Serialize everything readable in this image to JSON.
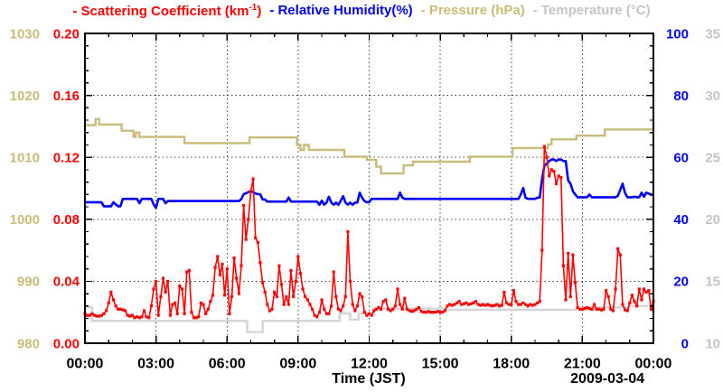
{
  "chart_data": {
    "type": "line",
    "background": "#ffffff",
    "frame_color": "#000000",
    "grid": {
      "style": "dotted",
      "vertical_hours": [
        3,
        6,
        9,
        12,
        15,
        18,
        21
      ],
      "horizontal_values": [
        0.04,
        0.08,
        0.12,
        0.16
      ]
    },
    "x_axis": {
      "label": "Time (JST)",
      "date_label": "2009-03-04",
      "range": [
        0,
        24
      ],
      "major_tick_hours": 3,
      "minor_tick_hours": 1,
      "tick_labels": [
        "00:00",
        "03:00",
        "06:00",
        "09:00",
        "12:00",
        "15:00",
        "18:00",
        "21:00",
        "00:00"
      ]
    },
    "y_axes": [
      {
        "id": "pressure",
        "label": "Pressure (hPa)",
        "side": "left-outer",
        "color": "#c8bc78",
        "range": [
          980,
          1030
        ],
        "tick_labels": [
          "980",
          "990",
          "1000",
          "1010",
          "1020",
          "1030"
        ]
      },
      {
        "id": "scattering",
        "label": "Scattering Coefficient (km-1)",
        "side": "left",
        "color": "#ff0000",
        "range": [
          0,
          0.2
        ],
        "tick_labels": [
          "0.00",
          "0.04",
          "0.08",
          "0.12",
          "0.16",
          "0.20"
        ],
        "minor_per_major": 4
      },
      {
        "id": "humidity",
        "label": "Relative Humidity(%)",
        "side": "right",
        "color": "#0000ff",
        "range": [
          0,
          100
        ],
        "tick_labels": [
          "0",
          "20",
          "40",
          "60",
          "80",
          "100"
        ]
      },
      {
        "id": "temperature",
        "label": "Temperature (°C)",
        "side": "right-outer",
        "color": "#c4c4c4",
        "range": [
          10,
          35
        ],
        "tick_labels": [
          "10",
          "15",
          "20",
          "25",
          "30",
          "35"
        ]
      }
    ],
    "series": [
      {
        "id": "scattering",
        "name": "Scattering Coefficient",
        "legend_label_base": "- Scattering Coefficient (km",
        "legend_label_sup": "-1",
        "legend_label_close": ")",
        "color": "#ff0000",
        "axis": "scattering",
        "style": "line+markers",
        "t_start": 0,
        "t_step": 0.1,
        "values": [
          0.019,
          0.018,
          0.018,
          0.019,
          0.018,
          0.0175,
          0.0175,
          0.018,
          0.019,
          0.021,
          0.026,
          0.033,
          0.028,
          0.024,
          0.022,
          0.022,
          0.0215,
          0.021,
          0.018,
          0.0175,
          0.018,
          0.0165,
          0.017,
          0.0165,
          0.017,
          0.021,
          0.017,
          0.0165,
          0.024,
          0.035,
          0.04,
          0.018,
          0.03,
          0.042,
          0.033,
          0.04,
          0.018,
          0.025,
          0.026,
          0.019,
          0.037,
          0.035,
          0.019,
          0.046,
          0.047,
          0.02,
          0.0165,
          0.0165,
          0.017,
          0.026,
          0.025,
          0.019,
          0.022,
          0.027,
          0.031,
          0.049,
          0.056,
          0.044,
          0.051,
          0.031,
          0.048,
          0.019,
          0.03,
          0.055,
          0.042,
          0.032,
          0.05,
          0.089,
          0.067,
          0.08,
          0.098,
          0.106,
          0.068,
          0.065,
          0.052,
          0.039,
          0.033,
          0.025,
          0.021,
          0.022,
          0.033,
          0.03,
          0.05,
          0.038,
          0.025,
          0.03,
          0.025,
          0.047,
          0.03,
          0.04,
          0.056,
          0.045,
          0.035,
          0.03,
          0.028,
          0.025,
          0.022,
          0.018,
          0.017,
          0.02,
          0.028,
          0.022,
          0.019,
          0.019,
          0.024,
          0.046,
          0.03,
          0.022,
          0.021,
          0.024,
          0.03,
          0.072,
          0.04,
          0.025,
          0.021,
          0.024,
          0.032,
          0.03,
          0.02,
          0.018,
          0.019,
          0.018,
          0.021,
          0.022,
          0.023,
          0.022,
          0.027,
          0.028,
          0.022,
          0.021,
          0.022,
          0.024,
          0.035,
          0.025,
          0.022,
          0.029,
          0.022,
          0.021,
          0.0205,
          0.021,
          0.022,
          0.023,
          0.0205,
          0.02,
          0.02,
          0.0205,
          0.02,
          0.02,
          0.02,
          0.0205,
          0.02,
          0.02,
          0.021,
          0.024,
          0.025,
          0.0245,
          0.025,
          0.026,
          0.027,
          0.025,
          0.0255,
          0.026,
          0.025,
          0.0255,
          0.026,
          0.027,
          0.025,
          0.0245,
          0.025,
          0.0245,
          0.025,
          0.0245,
          0.024,
          0.0245,
          0.025,
          0.024,
          0.0245,
          0.033,
          0.026,
          0.025,
          0.025,
          0.034,
          0.027,
          0.025,
          0.025,
          0.026,
          0.025,
          0.024,
          0.025,
          0.0245,
          0.025,
          0.026,
          0.027,
          0.06,
          0.127,
          0.12,
          0.108,
          0.112,
          0.111,
          0.103,
          0.108,
          0.107,
          0.05,
          0.028,
          0.058,
          0.03,
          0.057,
          0.039,
          0.023,
          0.022,
          0.022,
          0.0225,
          0.023,
          0.0225,
          0.022,
          0.025,
          0.022,
          0.022,
          0.0215,
          0.022,
          0.034,
          0.03,
          0.022,
          0.021,
          0.035,
          0.061,
          0.057,
          0.025,
          0.0215,
          0.021,
          0.026,
          0.031,
          0.027,
          0.024,
          0.035,
          0.028,
          0.035,
          0.033,
          0.034,
          0.022,
          0.027
        ]
      },
      {
        "id": "humidity",
        "name": "Relative Humidity",
        "legend_label": "- Relative Humidity(%)",
        "color": "#0000ff",
        "axis": "humidity",
        "style": "line",
        "t_start": 0,
        "t_step": 0.1,
        "values": [
          45.5,
          45.5,
          45.5,
          45.5,
          45.5,
          45.5,
          45.5,
          45.5,
          44.2,
          44.2,
          44.2,
          44.2,
          45.5,
          44.8,
          44.2,
          44.2,
          46.6,
          46.6,
          46.6,
          46.6,
          46.6,
          46.6,
          46.6,
          45.2,
          46.6,
          46.6,
          46.6,
          46.6,
          46.6,
          44.8,
          43.7,
          46.6,
          46.6,
          46.6,
          45.2,
          45.9,
          45.9,
          45.9,
          45.9,
          45.9,
          45.9,
          45.9,
          45.9,
          45.9,
          45.9,
          45.9,
          45.9,
          45.9,
          45.9,
          45.9,
          45.9,
          45.9,
          45.9,
          45.9,
          45.9,
          45.9,
          45.9,
          45.9,
          45.9,
          45.9,
          45.9,
          45.9,
          45.9,
          45.9,
          45.9,
          45.9,
          46.5,
          48.1,
          48.4,
          48.8,
          49.0,
          48.8,
          48.3,
          48.1,
          48.1,
          46.4,
          46.4,
          45.7,
          45.7,
          45.7,
          45.7,
          45.7,
          45.7,
          45.7,
          45.7,
          45.7,
          47.0,
          45.7,
          45.7,
          45.7,
          45.7,
          45.7,
          45.7,
          45.7,
          45.7,
          45.7,
          45.7,
          45.7,
          45.7,
          44.7,
          46.0,
          44.7,
          45.4,
          47.3,
          45.4,
          44.7,
          45.4,
          44.7,
          46.0,
          47.5,
          45.4,
          44.7,
          45.4,
          44.7,
          45.4,
          45.4,
          48.6,
          47.0,
          45.9,
          45.5,
          45.5,
          46.6,
          46.6,
          46.6,
          46.6,
          46.6,
          46.6,
          46.6,
          46.6,
          46.6,
          46.6,
          46.6,
          46.6,
          48.6,
          47.0,
          46.6,
          46.6,
          46.6,
          46.6,
          46.6,
          46.6,
          46.6,
          46.6,
          46.6,
          46.6,
          46.6,
          46.6,
          46.6,
          46.6,
          46.6,
          46.6,
          46.6,
          46.6,
          46.6,
          46.6,
          46.6,
          46.6,
          46.6,
          46.6,
          46.6,
          46.6,
          46.6,
          46.6,
          46.6,
          46.6,
          46.6,
          46.6,
          46.6,
          46.6,
          46.6,
          46.6,
          46.6,
          46.6,
          46.6,
          46.6,
          46.6,
          46.6,
          46.6,
          46.6,
          46.6,
          46.6,
          46.6,
          46.6,
          46.6,
          48.0,
          50.1,
          47.0,
          46.6,
          46.6,
          46.6,
          46.6,
          47.0,
          47.0,
          53.0,
          57.3,
          58.0,
          58.8,
          59.3,
          59.3,
          58.8,
          59.3,
          59.3,
          58.8,
          58.8,
          52.5,
          51.5,
          49.1,
          48.0,
          47.1,
          47.1,
          47.1,
          47.1,
          47.1,
          48.0,
          47.1,
          47.1,
          47.1,
          47.1,
          47.1,
          47.1,
          47.1,
          47.1,
          47.1,
          47.1,
          47.1,
          47.6,
          49.5,
          51.5,
          48.5,
          47.1,
          47.1,
          47.1,
          47.3,
          47.1,
          47.1,
          48.6,
          47.3,
          48.6,
          48.3,
          47.9,
          48.1
        ]
      },
      {
        "id": "pressure",
        "name": "Pressure",
        "legend_label": "- Pressure (hPa)",
        "color": "#c8bc78",
        "axis": "pressure",
        "style": "steps",
        "points": [
          [
            0.0,
            1015.2
          ],
          [
            0.45,
            1016.2
          ],
          [
            0.6,
            1015.3
          ],
          [
            1.55,
            1014.3
          ],
          [
            2.05,
            1013.3
          ],
          [
            2.15,
            1014.0
          ],
          [
            2.3,
            1013.3
          ],
          [
            4.2,
            1012.3
          ],
          [
            6.95,
            1013.2
          ],
          [
            8.95,
            1012.0
          ],
          [
            9.1,
            1011.2
          ],
          [
            9.25,
            1012.0
          ],
          [
            9.45,
            1011.2
          ],
          [
            10.95,
            1010.1
          ],
          [
            11.9,
            1009.6
          ],
          [
            12.3,
            1008.5
          ],
          [
            12.5,
            1007.4
          ],
          [
            13.45,
            1008.7
          ],
          [
            13.85,
            1009.3
          ],
          [
            16.25,
            1010.1
          ],
          [
            18.05,
            1011.5
          ],
          [
            19.55,
            1012.1
          ],
          [
            19.7,
            1012.9
          ],
          [
            20.75,
            1013.5
          ],
          [
            21.95,
            1014.5
          ],
          [
            24.0,
            1014.5
          ]
        ]
      },
      {
        "id": "temperature",
        "name": "Temperature",
        "legend_label": "- Temperature (°C)",
        "color": "#d4d4d4",
        "axis": "temperature",
        "style": "steps",
        "points": [
          [
            0.0,
            12.9
          ],
          [
            0.3,
            11.8
          ],
          [
            6.85,
            10.9
          ],
          [
            7.5,
            11.8
          ],
          [
            10.75,
            12.4
          ],
          [
            11.2,
            11.9
          ],
          [
            11.55,
            12.4
          ],
          [
            12.2,
            12.8
          ],
          [
            15.2,
            12.7
          ],
          [
            21.5,
            12.9
          ],
          [
            23.0,
            13.0
          ],
          [
            24.0,
            13.0
          ]
        ]
      }
    ]
  }
}
